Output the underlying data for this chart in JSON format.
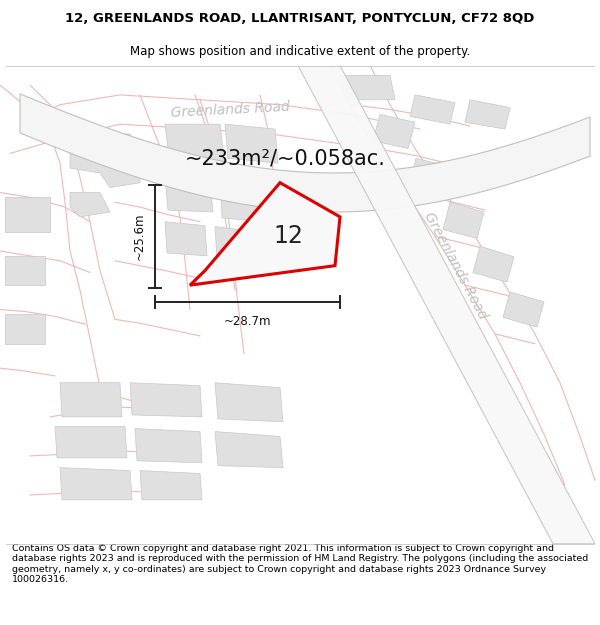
{
  "title_line1": "12, GREENLANDS ROAD, LLANTRISANT, PONTYCLUN, CF72 8QD",
  "title_line2": "Map shows position and indicative extent of the property.",
  "footer_text": "Contains OS data © Crown copyright and database right 2021. This information is subject to Crown copyright and database rights 2023 and is reproduced with the permission of HM Land Registry. The polygons (including the associated geometry, namely x, y co-ordinates) are subject to Crown copyright and database rights 2023 Ordnance Survey 100026316.",
  "area_label": "~233m²/~0.058ac.",
  "number_label": "12",
  "dim_h": "~25.6m",
  "dim_w": "~28.7m",
  "road_label1": "Greenlands Road",
  "road_label2": "Greenlands Road",
  "bg_color": "#ffffff",
  "road_band_color": "#e0e0e0",
  "road_line_color": "#f0b8b8",
  "building_color": "#e0e0e0",
  "building_edge_color": "#c8c8c8",
  "road_band_edge_color": "#c0c0c0",
  "red_line_color": "#dd0000",
  "dim_line_color": "#222222",
  "title_fontsize": 9.5,
  "subtitle_fontsize": 8.5,
  "footer_fontsize": 6.8,
  "area_fontsize": 15,
  "num_fontsize": 17,
  "road_fontsize1": 10,
  "road_fontsize2": 10,
  "road_text_color": "#c0c0c0"
}
